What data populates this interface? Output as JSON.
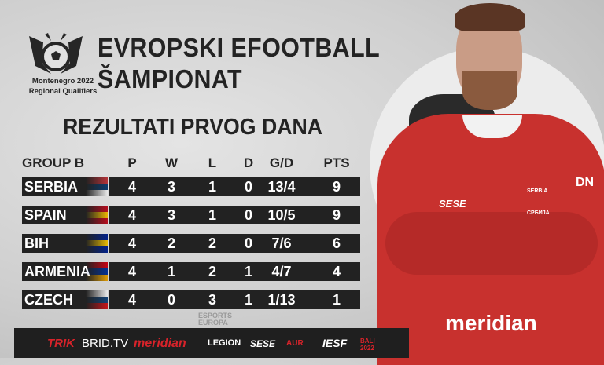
{
  "logo": {
    "line1": "Montenegro 2022",
    "line2": "Regional Qualifiers"
  },
  "title": {
    "line1": "EVROPSKI EFOOTBALL",
    "line2": "ŠAMPIONAT"
  },
  "subtitle": "REZULTATI PRVOG DANA",
  "table": {
    "headers": [
      "GROUP B",
      "P",
      "W",
      "L",
      "D",
      "G/D",
      "PTS"
    ],
    "rows": [
      {
        "team": "SERBIA",
        "p": "4",
        "w": "3",
        "l": "1",
        "d": "0",
        "gd": "13/4",
        "pts": "9",
        "flag": [
          "#c6363c",
          "#0c4076",
          "#ffffff"
        ]
      },
      {
        "team": "SPAIN",
        "p": "4",
        "w": "3",
        "l": "1",
        "d": "0",
        "gd": "10/5",
        "pts": "9",
        "flag": [
          "#c60b1e",
          "#ffc400",
          "#c60b1e"
        ]
      },
      {
        "team": "BIH",
        "p": "4",
        "w": "2",
        "l": "2",
        "d": "0",
        "gd": "7/6",
        "pts": "6",
        "flag": [
          "#002395",
          "#fecb00",
          "#002395"
        ]
      },
      {
        "team": "ARMENIA",
        "p": "4",
        "w": "1",
        "l": "2",
        "d": "1",
        "gd": "4/7",
        "pts": "4",
        "flag": [
          "#d90012",
          "#0033a0",
          "#f2a800"
        ]
      },
      {
        "team": "CZECH",
        "p": "4",
        "w": "0",
        "l": "3",
        "d": "1",
        "gd": "1/13",
        "pts": "1",
        "flag": [
          "#ffffff",
          "#11457e",
          "#d7141a"
        ]
      }
    ]
  },
  "player": {
    "sponsor": "meridian",
    "badge_line1": "SERBIA",
    "badge_line2": "СРБИЈА",
    "chest_left": "SESE",
    "sleeve": "DN"
  },
  "watermark": "ESPORTS EUROPA",
  "sponsors": [
    {
      "label": "TRIK",
      "color": "#d8232a"
    },
    {
      "label": "BRID.TV",
      "color": "#ffffff"
    },
    {
      "label": "meridian",
      "color": "#d8232a"
    },
    {
      "label": "LEGION",
      "color": "#ffffff"
    },
    {
      "label": "SESE",
      "color": "#ffffff"
    },
    {
      "label": "AUR",
      "color": "#d8232a"
    },
    {
      "label": "IESF",
      "color": "#ffffff"
    },
    {
      "label": "BALI 2022",
      "color": "#d8232a"
    }
  ],
  "colors": {
    "bar": "#222222",
    "shirt": "#c8312e"
  }
}
